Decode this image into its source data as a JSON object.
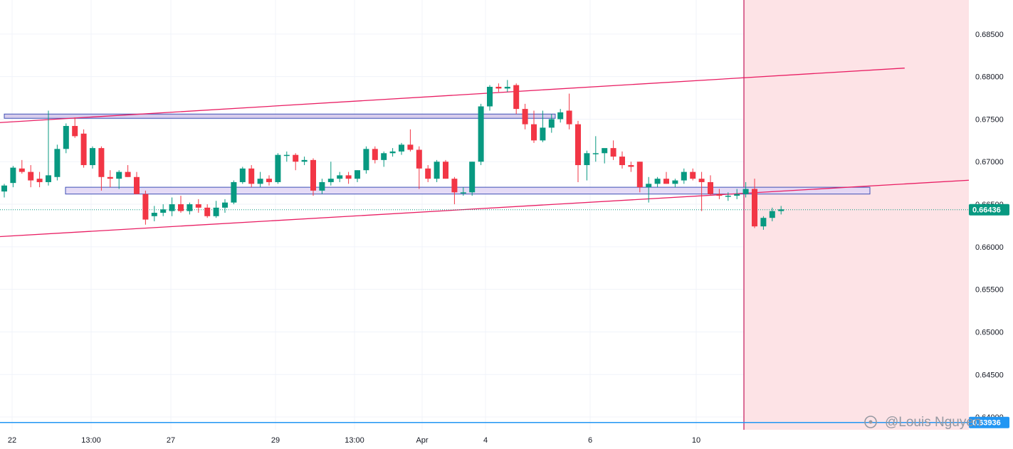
{
  "chart_data": {
    "type": "candlestick",
    "y_axis": {
      "range": [
        0.6385,
        0.689
      ],
      "ticks": [
        "0.68500",
        "0.68000",
        "0.67500",
        "0.67000",
        "0.66500",
        "0.66000",
        "0.65500",
        "0.65000",
        "0.64500",
        "0.64000"
      ]
    },
    "x_axis": {
      "ticks": [
        "22",
        "13:00",
        "27",
        "29",
        "13:00",
        "Apr",
        "4",
        "6",
        "10"
      ]
    },
    "last_price": {
      "value": 0.66436,
      "label": "0.66436",
      "color": "#089981"
    },
    "target_line": {
      "value": 0.63936,
      "label": "0.63936",
      "color": "#2196f3"
    },
    "zones": [
      {
        "name": "upper-resistance-zone",
        "low": 0.6751,
        "high": 0.6756,
        "fill": "#d1c4e9",
        "stroke": "#3f51b5"
      },
      {
        "name": "support-resistance-zone",
        "low": 0.6662,
        "high": 0.667,
        "fill": "#e1d5f5",
        "stroke": "#3f51b5"
      }
    ],
    "trend_lines": [
      {
        "name": "upper-trend-line",
        "p1": [
          0,
          0.6746
        ],
        "p2": [
          102,
          0.681
        ]
      },
      {
        "name": "lower-trend-line",
        "p1": [
          0,
          0.6612
        ],
        "p2": [
          142,
          0.6698
        ]
      }
    ],
    "projection": [
      [
        125,
        0.6668
      ],
      [
        128,
        0.661
      ],
      [
        135,
        0.6666
      ],
      [
        137,
        0.6548
      ]
    ],
    "candles": [
      [
        0.6665,
        0.6674,
        0.6658,
        0.6672
      ],
      [
        0.6675,
        0.6695,
        0.667,
        0.6693
      ],
      [
        0.6692,
        0.6702,
        0.6686,
        0.6688
      ],
      [
        0.6688,
        0.6696,
        0.667,
        0.6678
      ],
      [
        0.668,
        0.6688,
        0.667,
        0.6676
      ],
      [
        0.6676,
        0.676,
        0.6672,
        0.6684
      ],
      [
        0.6682,
        0.672,
        0.6678,
        0.6715
      ],
      [
        0.6715,
        0.6745,
        0.671,
        0.6742
      ],
      [
        0.6742,
        0.6752,
        0.6728,
        0.673
      ],
      [
        0.6733,
        0.6738,
        0.6693,
        0.6696
      ],
      [
        0.6696,
        0.6718,
        0.6692,
        0.6716
      ],
      [
        0.6716,
        0.6718,
        0.6666,
        0.6682
      ],
      [
        0.6682,
        0.669,
        0.667,
        0.668
      ],
      [
        0.668,
        0.669,
        0.6668,
        0.6688
      ],
      [
        0.6688,
        0.6696,
        0.6682,
        0.6682
      ],
      [
        0.6682,
        0.6688,
        0.6662,
        0.6662
      ],
      [
        0.6662,
        0.6666,
        0.6626,
        0.6632
      ],
      [
        0.6636,
        0.6648,
        0.663,
        0.664
      ],
      [
        0.664,
        0.665,
        0.6636,
        0.6644
      ],
      [
        0.6642,
        0.6658,
        0.6636,
        0.665
      ],
      [
        0.665,
        0.666,
        0.664,
        0.6642
      ],
      [
        0.6642,
        0.6652,
        0.6638,
        0.665
      ],
      [
        0.665,
        0.6656,
        0.664,
        0.6646
      ],
      [
        0.6646,
        0.665,
        0.6634,
        0.6636
      ],
      [
        0.6636,
        0.6654,
        0.6634,
        0.6646
      ],
      [
        0.6646,
        0.6656,
        0.664,
        0.6652
      ],
      [
        0.6652,
        0.6678,
        0.665,
        0.6676
      ],
      [
        0.6676,
        0.6694,
        0.6674,
        0.6692
      ],
      [
        0.6692,
        0.6696,
        0.667,
        0.6674
      ],
      [
        0.6674,
        0.6688,
        0.667,
        0.668
      ],
      [
        0.668,
        0.6684,
        0.6672,
        0.6676
      ],
      [
        0.6676,
        0.671,
        0.6674,
        0.6708
      ],
      [
        0.6708,
        0.6712,
        0.67,
        0.6708
      ],
      [
        0.6708,
        0.671,
        0.669,
        0.67
      ],
      [
        0.67,
        0.6706,
        0.6696,
        0.6702
      ],
      [
        0.6702,
        0.6704,
        0.666,
        0.6666
      ],
      [
        0.6666,
        0.668,
        0.6662,
        0.6676
      ],
      [
        0.6676,
        0.67,
        0.6672,
        0.668
      ],
      [
        0.668,
        0.6688,
        0.6676,
        0.6684
      ],
      [
        0.6684,
        0.6688,
        0.6674,
        0.668
      ],
      [
        0.668,
        0.669,
        0.6676,
        0.669
      ],
      [
        0.669,
        0.6718,
        0.6686,
        0.6715
      ],
      [
        0.6715,
        0.6718,
        0.6698,
        0.6702
      ],
      [
        0.6702,
        0.6712,
        0.6694,
        0.671
      ],
      [
        0.671,
        0.6716,
        0.6706,
        0.6712
      ],
      [
        0.6712,
        0.6722,
        0.6708,
        0.672
      ],
      [
        0.672,
        0.6738,
        0.6712,
        0.6714
      ],
      [
        0.6714,
        0.6718,
        0.6668,
        0.6692
      ],
      [
        0.6692,
        0.6696,
        0.6676,
        0.668
      ],
      [
        0.668,
        0.6702,
        0.6676,
        0.67
      ],
      [
        0.67,
        0.6702,
        0.668,
        0.668
      ],
      [
        0.668,
        0.6682,
        0.665,
        0.6664
      ],
      [
        0.6664,
        0.667,
        0.666,
        0.6664
      ],
      [
        0.6664,
        0.67,
        0.666,
        0.67
      ],
      [
        0.67,
        0.6768,
        0.6696,
        0.6765
      ],
      [
        0.6765,
        0.679,
        0.676,
        0.6788
      ],
      [
        0.6788,
        0.6792,
        0.6782,
        0.6786
      ],
      [
        0.6786,
        0.6796,
        0.6782,
        0.6788
      ],
      [
        0.679,
        0.6792,
        0.6756,
        0.6762
      ],
      [
        0.6762,
        0.6768,
        0.6738,
        0.6744
      ],
      [
        0.6744,
        0.676,
        0.6722,
        0.6725
      ],
      [
        0.6725,
        0.676,
        0.6723,
        0.674
      ],
      [
        0.674,
        0.6756,
        0.6734,
        0.675
      ],
      [
        0.675,
        0.6762,
        0.6746,
        0.6758
      ],
      [
        0.676,
        0.678,
        0.6738,
        0.6744
      ],
      [
        0.6744,
        0.6748,
        0.6676,
        0.6696
      ],
      [
        0.6696,
        0.6713,
        0.6678,
        0.671
      ],
      [
        0.671,
        0.673,
        0.67,
        0.671
      ],
      [
        0.671,
        0.6712,
        0.6698,
        0.6716
      ],
      [
        0.6716,
        0.6725,
        0.6702,
        0.6706
      ],
      [
        0.6706,
        0.6712,
        0.6692,
        0.6696
      ],
      [
        0.6696,
        0.67,
        0.6688,
        0.6694
      ],
      [
        0.67,
        0.67,
        0.6664,
        0.667
      ],
      [
        0.667,
        0.6682,
        0.6652,
        0.6674
      ],
      [
        0.6674,
        0.6682,
        0.667,
        0.668
      ],
      [
        0.668,
        0.6688,
        0.6674,
        0.6674
      ],
      [
        0.6674,
        0.668,
        0.667,
        0.6678
      ],
      [
        0.6678,
        0.6692,
        0.6674,
        0.6688
      ],
      [
        0.6688,
        0.6692,
        0.6678,
        0.668
      ],
      [
        0.668,
        0.6688,
        0.6642,
        0.6676
      ],
      [
        0.6676,
        0.6684,
        0.666,
        0.6662
      ],
      [
        0.6662,
        0.6668,
        0.6656,
        0.666
      ],
      [
        0.666,
        0.6664,
        0.6654,
        0.666
      ],
      [
        0.666,
        0.6668,
        0.6656,
        0.6662
      ],
      [
        0.6662,
        0.6676,
        0.6658,
        0.6668
      ],
      [
        0.6668,
        0.668,
        0.6622,
        0.6624
      ],
      [
        0.6624,
        0.6636,
        0.662,
        0.6634
      ],
      [
        0.6634,
        0.6646,
        0.663,
        0.6642
      ],
      [
        0.6642,
        0.6648,
        0.6638,
        0.6644
      ]
    ]
  },
  "watermark": "@Louis Nguyen",
  "colors": {
    "up": "#089981",
    "down": "#f23645",
    "trend": "#e91e63",
    "projection": "#5d6b6b",
    "future_zone": "#fde3e6",
    "divider": "#c2185b",
    "grid": "#f0f3fa"
  }
}
